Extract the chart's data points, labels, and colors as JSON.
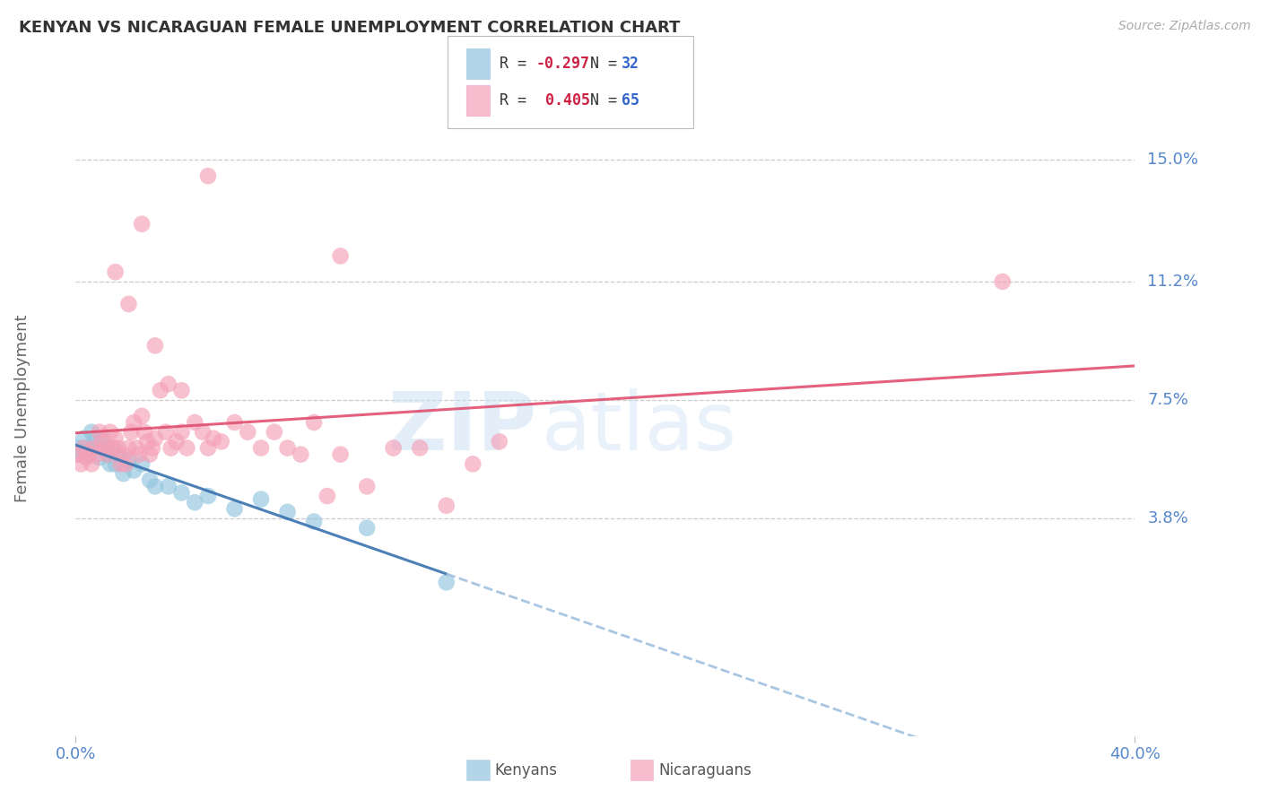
{
  "title": "KENYAN VS NICARAGUAN FEMALE UNEMPLOYMENT CORRELATION CHART",
  "source": "Source: ZipAtlas.com",
  "ylabel": "Female Unemployment",
  "xlim": [
    0.0,
    0.4
  ],
  "ylim": [
    -0.03,
    0.175
  ],
  "watermark_part1": "ZIP",
  "watermark_part2": "atlas",
  "kenya_color": "#92c5de",
  "nicaragua_color": "#f4a0b8",
  "kenya_line_color": "#3a72b0",
  "kenya_line_dash_color": "#a0c0e0",
  "nicaragua_line_color": "#e05070",
  "ytick_values": [
    0.15,
    0.112,
    0.075,
    0.038
  ],
  "ytick_labels": [
    "15.0%",
    "11.2%",
    "7.5%",
    "3.8%"
  ],
  "xtick_values": [
    0.0,
    0.4
  ],
  "xtick_labels": [
    "0.0%",
    "40.0%"
  ],
  "grid_color": "#cccccc",
  "background_color": "#ffffff",
  "title_color": "#333333",
  "axis_label_color": "#666666",
  "tick_color": "#5588cc",
  "legend_R_color": "#cc2244",
  "legend_N_color": "#3366cc",
  "kenya_scatter": [
    [
      0.001,
      0.06
    ],
    [
      0.002,
      0.058
    ],
    [
      0.003,
      0.063
    ],
    [
      0.004,
      0.06
    ],
    [
      0.005,
      0.058
    ],
    [
      0.006,
      0.065
    ],
    [
      0.007,
      0.062
    ],
    [
      0.008,
      0.06
    ],
    [
      0.009,
      0.057
    ],
    [
      0.01,
      0.063
    ],
    [
      0.011,
      0.06
    ],
    [
      0.012,
      0.058
    ],
    [
      0.013,
      0.055
    ],
    [
      0.014,
      0.06
    ],
    [
      0.015,
      0.055
    ],
    [
      0.016,
      0.058
    ],
    [
      0.018,
      0.052
    ],
    [
      0.02,
      0.056
    ],
    [
      0.022,
      0.053
    ],
    [
      0.025,
      0.055
    ],
    [
      0.028,
      0.05
    ],
    [
      0.03,
      0.048
    ],
    [
      0.035,
      0.048
    ],
    [
      0.04,
      0.046
    ],
    [
      0.045,
      0.043
    ],
    [
      0.05,
      0.045
    ],
    [
      0.06,
      0.041
    ],
    [
      0.07,
      0.044
    ],
    [
      0.08,
      0.04
    ],
    [
      0.09,
      0.037
    ],
    [
      0.11,
      0.035
    ],
    [
      0.14,
      0.018
    ]
  ],
  "nicaragua_scatter": [
    [
      0.001,
      0.058
    ],
    [
      0.002,
      0.055
    ],
    [
      0.003,
      0.06
    ],
    [
      0.004,
      0.057
    ],
    [
      0.005,
      0.058
    ],
    [
      0.006,
      0.055
    ],
    [
      0.007,
      0.06
    ],
    [
      0.008,
      0.058
    ],
    [
      0.009,
      0.065
    ],
    [
      0.01,
      0.062
    ],
    [
      0.011,
      0.06
    ],
    [
      0.012,
      0.058
    ],
    [
      0.013,
      0.065
    ],
    [
      0.014,
      0.06
    ],
    [
      0.015,
      0.063
    ],
    [
      0.016,
      0.06
    ],
    [
      0.017,
      0.055
    ],
    [
      0.018,
      0.058
    ],
    [
      0.019,
      0.055
    ],
    [
      0.02,
      0.06
    ],
    [
      0.021,
      0.065
    ],
    [
      0.022,
      0.068
    ],
    [
      0.023,
      0.06
    ],
    [
      0.024,
      0.058
    ],
    [
      0.025,
      0.07
    ],
    [
      0.026,
      0.065
    ],
    [
      0.027,
      0.062
    ],
    [
      0.028,
      0.058
    ],
    [
      0.029,
      0.06
    ],
    [
      0.03,
      0.063
    ],
    [
      0.032,
      0.078
    ],
    [
      0.034,
      0.065
    ],
    [
      0.036,
      0.06
    ],
    [
      0.038,
      0.062
    ],
    [
      0.04,
      0.065
    ],
    [
      0.042,
      0.06
    ],
    [
      0.045,
      0.068
    ],
    [
      0.048,
      0.065
    ],
    [
      0.05,
      0.06
    ],
    [
      0.052,
      0.063
    ],
    [
      0.055,
      0.062
    ],
    [
      0.06,
      0.068
    ],
    [
      0.065,
      0.065
    ],
    [
      0.07,
      0.06
    ],
    [
      0.075,
      0.065
    ],
    [
      0.08,
      0.06
    ],
    [
      0.085,
      0.058
    ],
    [
      0.09,
      0.068
    ],
    [
      0.095,
      0.045
    ],
    [
      0.1,
      0.058
    ],
    [
      0.11,
      0.048
    ],
    [
      0.12,
      0.06
    ],
    [
      0.13,
      0.06
    ],
    [
      0.14,
      0.042
    ],
    [
      0.15,
      0.055
    ],
    [
      0.16,
      0.062
    ],
    [
      0.025,
      0.13
    ],
    [
      0.05,
      0.145
    ],
    [
      0.1,
      0.12
    ],
    [
      0.02,
      0.105
    ],
    [
      0.015,
      0.115
    ],
    [
      0.03,
      0.092
    ],
    [
      0.35,
      0.112
    ],
    [
      0.035,
      0.08
    ],
    [
      0.04,
      0.078
    ]
  ]
}
